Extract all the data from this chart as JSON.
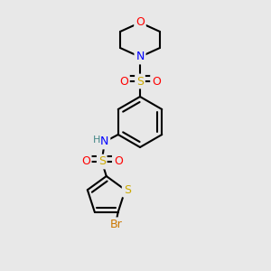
{
  "bg_color": "#e8e8e8",
  "atom_colors": {
    "C": "#000000",
    "N": "#0000ff",
    "O": "#ff0000",
    "S": "#ccaa00",
    "Br": "#cc7700",
    "H": "#448888"
  },
  "bond_color": "#000000",
  "bond_width": 1.5,
  "figsize": [
    3.0,
    3.0
  ],
  "dpi": 100
}
